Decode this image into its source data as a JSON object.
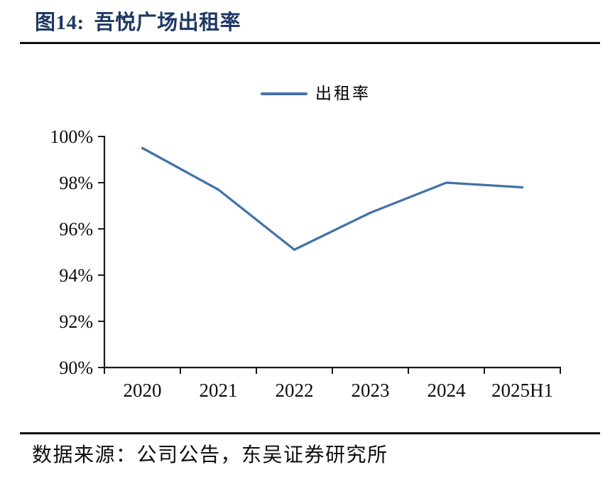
{
  "figure": {
    "label": "图14:",
    "title": "吾悦广场出租率",
    "source": "数据来源：公司公告，东吴证券研究所"
  },
  "colors": {
    "title": "#1f3864",
    "line": "#4472a8",
    "rule": "#101010",
    "axis": "#1a1a1a",
    "text": "#0d0d0d"
  },
  "chart_data": {
    "type": "line",
    "title": "吾悦广场出租率",
    "categories": [
      "2020",
      "2021",
      "2022",
      "2023",
      "2024",
      "2025H1"
    ],
    "series": [
      {
        "name": "出租率",
        "values": [
          99.5,
          97.7,
          95.1,
          96.7,
          98.0,
          97.8
        ]
      }
    ],
    "xlabel": "",
    "ylabel": "",
    "ylim": [
      90,
      100
    ],
    "ytick_step": 2,
    "ytick_suffix": "%",
    "grid": false,
    "legend_position": "top-center",
    "legend_entries": [
      "出租率"
    ]
  }
}
